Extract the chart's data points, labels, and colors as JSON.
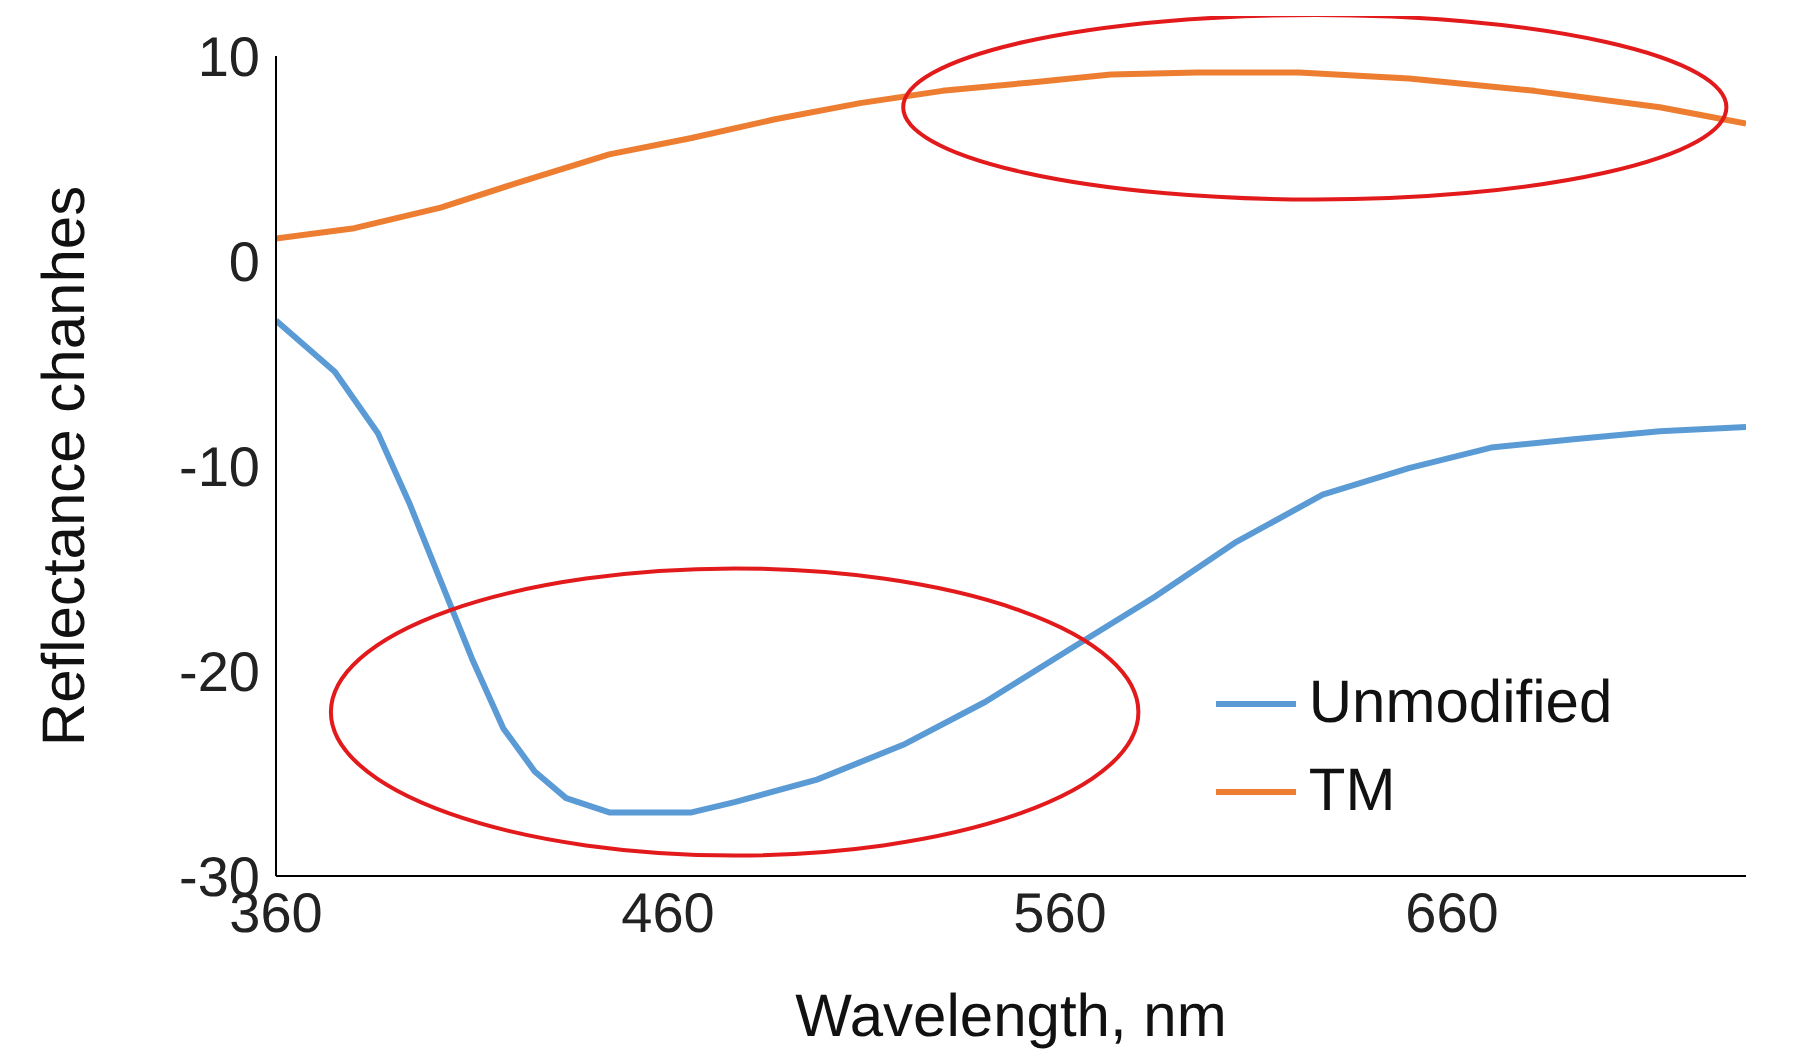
{
  "chart_data": {
    "type": "line",
    "xlabel": "Wavelength, nm",
    "ylabel": "Reflectance chanhes",
    "xlim": [
      360,
      735
    ],
    "xticks": [
      360,
      460,
      560,
      660
    ],
    "ylim": [
      -30,
      10
    ],
    "yticks": [
      -30,
      -20,
      -10,
      0,
      10
    ],
    "grid": false,
    "legend": "bottom right",
    "marker": "none",
    "line_style": "solid",
    "series": [
      {
        "name": "Unmodified",
        "color": "#5b9bd5",
        "x": [
          360,
          375,
          386,
          394,
          402,
          410,
          418,
          426,
          434,
          445,
          466,
          477,
          498,
          520,
          541,
          562,
          584,
          605,
          627,
          649,
          670,
          691,
          713,
          735
        ],
        "values": [
          -2.9,
          -5.4,
          -8.4,
          -11.8,
          -15.6,
          -19.4,
          -22.8,
          -24.9,
          -26.2,
          -26.9,
          -26.9,
          -26.4,
          -25.3,
          -23.6,
          -21.5,
          -19.0,
          -16.4,
          -13.7,
          -11.4,
          -10.1,
          -9.1,
          -8.7,
          -8.3,
          -8.1
        ]
      },
      {
        "name": "TM",
        "color": "#ed7d31",
        "x": [
          360,
          380,
          402,
          423,
          445,
          466,
          487,
          509,
          530,
          552,
          573,
          595,
          621,
          649,
          681,
          713,
          735
        ],
        "values": [
          1.1,
          1.6,
          2.6,
          3.9,
          5.2,
          6.0,
          6.9,
          7.7,
          8.3,
          8.7,
          9.1,
          9.2,
          9.2,
          8.9,
          8.3,
          7.5,
          6.7
        ]
      }
    ]
  }
}
